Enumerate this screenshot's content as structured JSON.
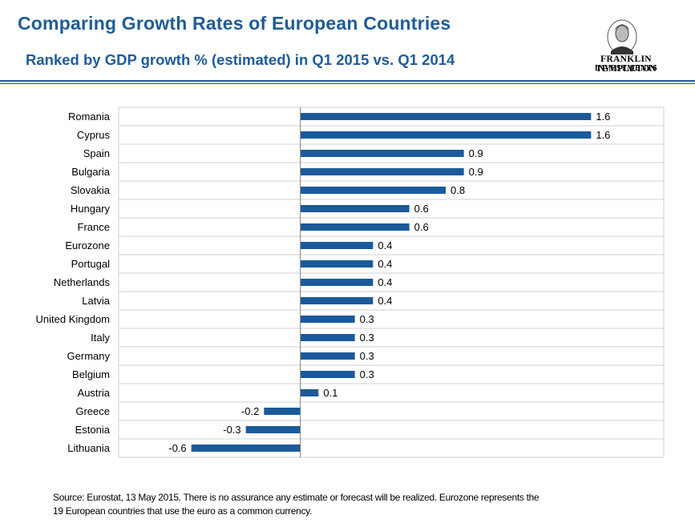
{
  "header": {
    "title": "Comparing Growth Rates of European Countries",
    "subtitle": "Ranked by GDP growth % (estimated) in Q1 2015 vs. Q1 2014",
    "logo_line1": "FRANKLIN TEMPLETON",
    "logo_line2": "INVESTMENTS"
  },
  "footer": {
    "line1": "Source: Eurostat, 13 May 2015. There is no assurance any estimate or forecast will be realized. Eurozone represents the",
    "line2": "19 European countries that use the euro as a common currency."
  },
  "colors": {
    "brand": "#1f5c99",
    "bar": "#1b5a9a",
    "grid": "#d0d0d0"
  },
  "chart_data": {
    "type": "bar",
    "orientation": "horizontal",
    "categories": [
      "Romania",
      "Cyprus",
      "Spain",
      "Bulgaria",
      "Slovakia",
      "Hungary",
      "France",
      "Eurozone",
      "Portugal",
      "Netherlands",
      "Latvia",
      "United Kingdom",
      "Italy",
      "Germany",
      "Belgium",
      "Austria",
      "Greece",
      "Estonia",
      "Lithuania"
    ],
    "values": [
      1.6,
      1.6,
      0.9,
      0.9,
      0.8,
      0.6,
      0.6,
      0.4,
      0.4,
      0.4,
      0.4,
      0.3,
      0.3,
      0.3,
      0.3,
      0.1,
      -0.2,
      -0.3,
      -0.6
    ],
    "xlim": [
      -1.0,
      2.0
    ],
    "grid": true,
    "data_labels": true
  }
}
